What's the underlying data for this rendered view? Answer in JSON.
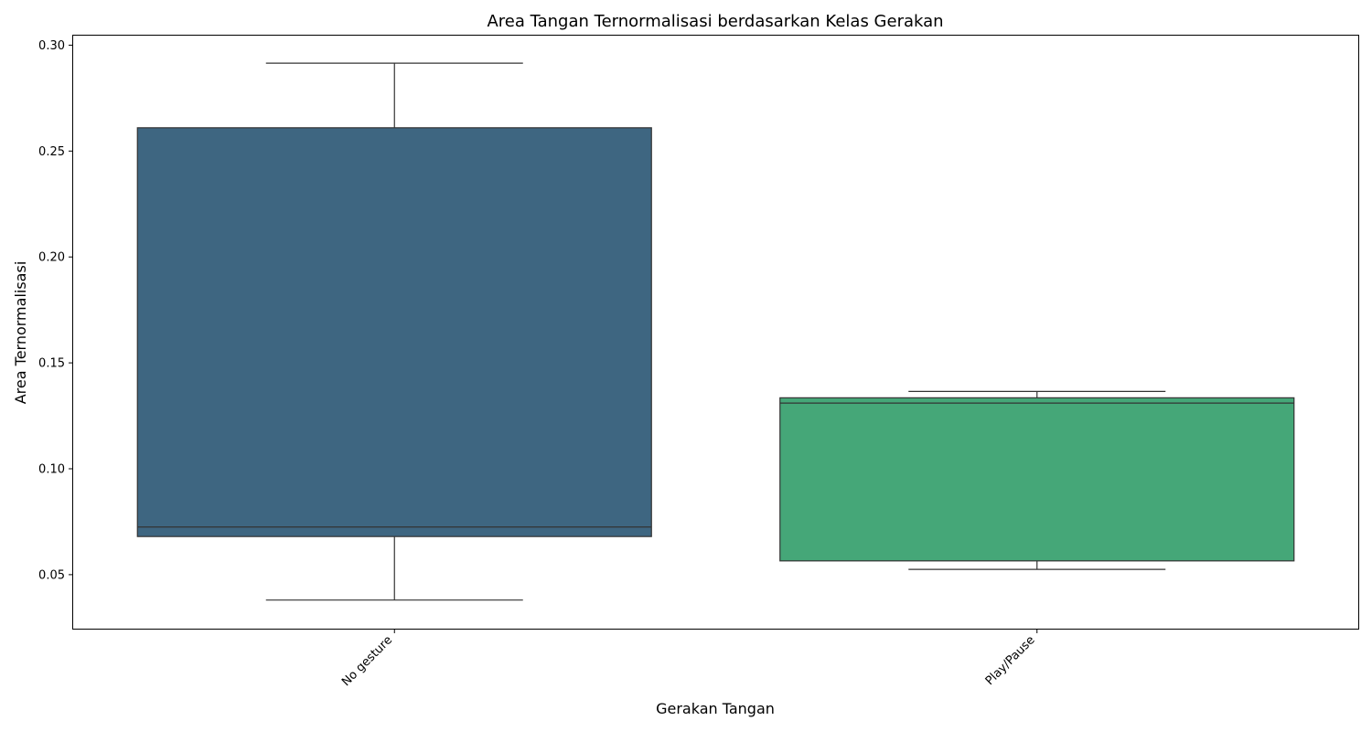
{
  "chart_data": {
    "type": "boxplot",
    "title": "Area Tangan Ternormalisasi berdasarkan Kelas Gerakan",
    "xlabel": "Gerakan Tangan",
    "ylabel": "Area Ternormalisasi",
    "categories": [
      "No gesture",
      "Play/Pause"
    ],
    "boxes": [
      {
        "category": "No gesture",
        "whislo": 0.038,
        "q1": 0.068,
        "med": 0.0725,
        "q3": 0.261,
        "whishi": 0.2915,
        "color": "#3e6681"
      },
      {
        "category": "Play/Pause",
        "whislo": 0.0525,
        "q1": 0.0565,
        "med": 0.131,
        "q3": 0.1335,
        "whishi": 0.1365,
        "color": "#45a778"
      }
    ],
    "ylim": [
      0.0245,
      0.3045
    ],
    "yticks": [
      0.05,
      0.1,
      0.15,
      0.2,
      0.25,
      0.3
    ],
    "ytick_labels": [
      "0.05",
      "0.10",
      "0.15",
      "0.20",
      "0.25",
      "0.30"
    ],
    "grid": false,
    "legend": "none"
  }
}
